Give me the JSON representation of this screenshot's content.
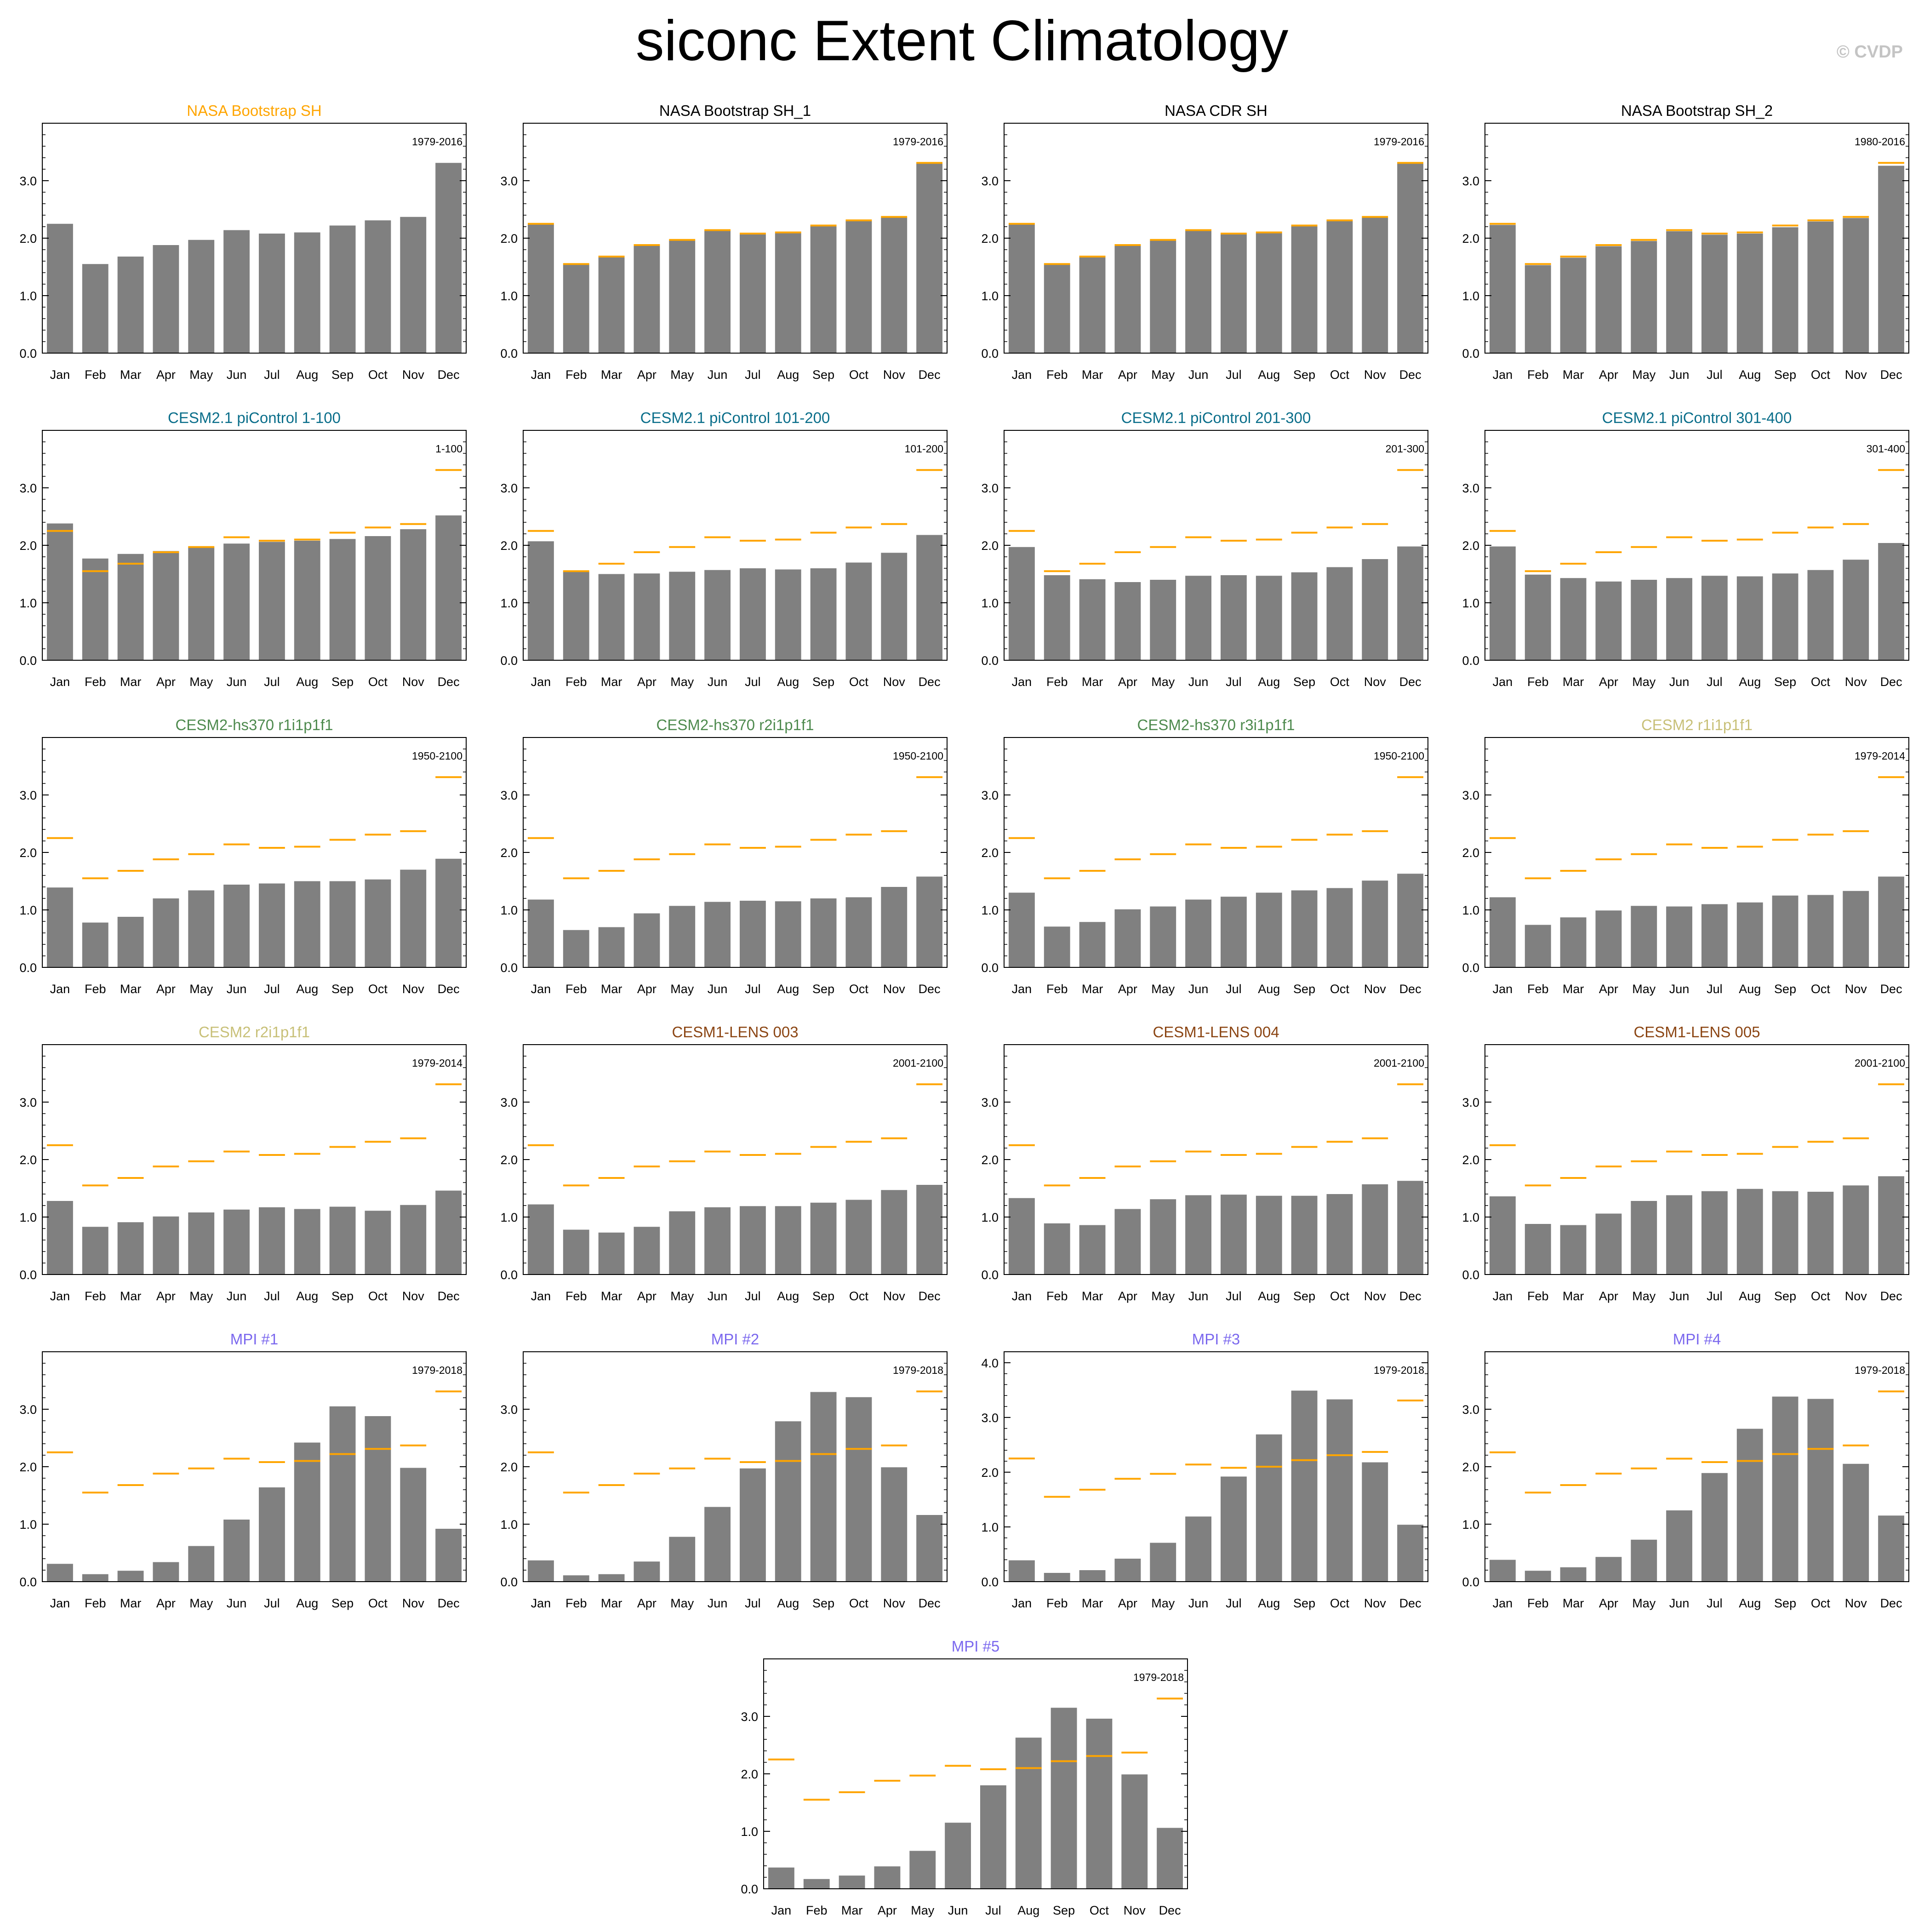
{
  "title": "siconc Extent Climatology",
  "watermark": "© CVDP",
  "months": [
    "Jan",
    "Feb",
    "Mar",
    "Apr",
    "May",
    "Jun",
    "Jul",
    "Aug",
    "Sep",
    "Oct",
    "Nov",
    "Dec"
  ],
  "obs_color": "#ffa500",
  "bar_color": "#808080",
  "reference": [
    2.25,
    1.55,
    1.68,
    1.88,
    1.97,
    2.14,
    2.08,
    2.1,
    2.22,
    2.31,
    2.37,
    3.31
  ],
  "chart_data": [
    {
      "type": "bar",
      "title": "NASA Bootstrap SH",
      "title_color": "#ffa500",
      "period": "1979-2016",
      "ylim": [
        0,
        4
      ],
      "yticks": [
        "0.0",
        "1.0",
        "2.0",
        "3.0"
      ],
      "values": [
        2.25,
        1.55,
        1.68,
        1.88,
        1.97,
        2.14,
        2.08,
        2.1,
        2.22,
        2.31,
        2.37,
        3.31
      ],
      "show_reference": false
    },
    {
      "type": "bar",
      "title": "NASA Bootstrap SH_1",
      "title_color": "#000000",
      "period": "1979-2016",
      "ylim": [
        0,
        4
      ],
      "yticks": [
        "0.0",
        "1.0",
        "2.0",
        "3.0"
      ],
      "values": [
        2.24,
        1.54,
        1.67,
        1.87,
        1.96,
        2.13,
        2.07,
        2.09,
        2.21,
        2.3,
        2.36,
        3.3
      ],
      "show_reference": true
    },
    {
      "type": "bar",
      "title": "NASA CDR SH",
      "title_color": "#000000",
      "period": "1979-2016",
      "ylim": [
        0,
        4
      ],
      "yticks": [
        "0.0",
        "1.0",
        "2.0",
        "3.0"
      ],
      "values": [
        2.24,
        1.54,
        1.67,
        1.87,
        1.96,
        2.13,
        2.07,
        2.09,
        2.21,
        2.3,
        2.36,
        3.3
      ],
      "show_reference": true
    },
    {
      "type": "bar",
      "title": "NASA Bootstrap SH_2",
      "title_color": "#000000",
      "period": "1980-2016",
      "ylim": [
        0,
        4
      ],
      "yticks": [
        "0.0",
        "1.0",
        "2.0",
        "3.0"
      ],
      "values": [
        2.23,
        1.53,
        1.66,
        1.86,
        1.95,
        2.12,
        2.06,
        2.08,
        2.19,
        2.29,
        2.35,
        3.26
      ],
      "show_reference": true
    },
    {
      "type": "bar",
      "title": "CESM2.1 piControl 1-100",
      "title_color": "#0a6e8a",
      "period": "1-100",
      "ylim": [
        0,
        4
      ],
      "yticks": [
        "0.0",
        "1.0",
        "2.0",
        "3.0"
      ],
      "values": [
        2.38,
        1.77,
        1.85,
        1.9,
        1.97,
        2.03,
        2.06,
        2.08,
        2.11,
        2.16,
        2.28,
        2.52
      ],
      "show_reference": true
    },
    {
      "type": "bar",
      "title": "CESM2.1 piControl 101-200",
      "title_color": "#0a6e8a",
      "period": "101-200",
      "ylim": [
        0,
        4
      ],
      "yticks": [
        "0.0",
        "1.0",
        "2.0",
        "3.0"
      ],
      "values": [
        2.07,
        1.54,
        1.5,
        1.51,
        1.54,
        1.57,
        1.6,
        1.58,
        1.6,
        1.7,
        1.87,
        2.18
      ],
      "show_reference": true
    },
    {
      "type": "bar",
      "title": "CESM2.1 piControl 201-300",
      "title_color": "#0a6e8a",
      "period": "201-300",
      "ylim": [
        0,
        4
      ],
      "yticks": [
        "0.0",
        "1.0",
        "2.0",
        "3.0"
      ],
      "values": [
        1.97,
        1.48,
        1.41,
        1.36,
        1.4,
        1.47,
        1.48,
        1.47,
        1.53,
        1.62,
        1.76,
        1.98
      ],
      "show_reference": true
    },
    {
      "type": "bar",
      "title": "CESM2.1 piControl 301-400",
      "title_color": "#0a6e8a",
      "period": "301-400",
      "ylim": [
        0,
        4
      ],
      "yticks": [
        "0.0",
        "1.0",
        "2.0",
        "3.0"
      ],
      "values": [
        1.98,
        1.49,
        1.43,
        1.37,
        1.4,
        1.43,
        1.47,
        1.46,
        1.51,
        1.57,
        1.75,
        2.04
      ],
      "show_reference": true
    },
    {
      "type": "bar",
      "title": "CESM2-hs370 r1i1p1f1",
      "title_color": "#4e8a4e",
      "period": "1950-2100",
      "ylim": [
        0,
        4
      ],
      "yticks": [
        "0.0",
        "1.0",
        "2.0",
        "3.0"
      ],
      "values": [
        1.39,
        0.78,
        0.88,
        1.2,
        1.34,
        1.44,
        1.46,
        1.5,
        1.5,
        1.53,
        1.7,
        1.89
      ],
      "show_reference": true
    },
    {
      "type": "bar",
      "title": "CESM2-hs370 r2i1p1f1",
      "title_color": "#4e8a4e",
      "period": "1950-2100",
      "ylim": [
        0,
        4
      ],
      "yticks": [
        "0.0",
        "1.0",
        "2.0",
        "3.0"
      ],
      "values": [
        1.18,
        0.65,
        0.7,
        0.94,
        1.07,
        1.14,
        1.16,
        1.15,
        1.2,
        1.22,
        1.4,
        1.58
      ],
      "show_reference": true
    },
    {
      "type": "bar",
      "title": "CESM2-hs370 r3i1p1f1",
      "title_color": "#4e8a4e",
      "period": "1950-2100",
      "ylim": [
        0,
        4
      ],
      "yticks": [
        "0.0",
        "1.0",
        "2.0",
        "3.0"
      ],
      "values": [
        1.3,
        0.71,
        0.79,
        1.01,
        1.06,
        1.18,
        1.23,
        1.3,
        1.34,
        1.38,
        1.51,
        1.63
      ],
      "show_reference": true
    },
    {
      "type": "bar",
      "title": "CESM2 r1i1p1f1",
      "title_color": "#c8c078",
      "period": "1979-2014",
      "ylim": [
        0,
        4
      ],
      "yticks": [
        "0.0",
        "1.0",
        "2.0",
        "3.0"
      ],
      "values": [
        1.22,
        0.74,
        0.87,
        0.99,
        1.07,
        1.06,
        1.1,
        1.13,
        1.25,
        1.26,
        1.33,
        1.58
      ],
      "show_reference": true
    },
    {
      "type": "bar",
      "title": "CESM2 r2i1p1f1",
      "title_color": "#c8c078",
      "period": "1979-2014",
      "ylim": [
        0,
        4
      ],
      "yticks": [
        "0.0",
        "1.0",
        "2.0",
        "3.0"
      ],
      "values": [
        1.28,
        0.83,
        0.91,
        1.01,
        1.08,
        1.13,
        1.17,
        1.14,
        1.18,
        1.11,
        1.21,
        1.46
      ],
      "show_reference": true
    },
    {
      "type": "bar",
      "title": "CESM1-LENS 003",
      "title_color": "#8b4513",
      "period": "2001-2100",
      "ylim": [
        0,
        4
      ],
      "yticks": [
        "0.0",
        "1.0",
        "2.0",
        "3.0"
      ],
      "values": [
        1.22,
        0.78,
        0.73,
        0.83,
        1.1,
        1.17,
        1.19,
        1.19,
        1.25,
        1.3,
        1.47,
        1.56
      ],
      "show_reference": true
    },
    {
      "type": "bar",
      "title": "CESM1-LENS 004",
      "title_color": "#8b4513",
      "period": "2001-2100",
      "ylim": [
        0,
        4
      ],
      "yticks": [
        "0.0",
        "1.0",
        "2.0",
        "3.0"
      ],
      "values": [
        1.33,
        0.89,
        0.86,
        1.14,
        1.31,
        1.38,
        1.39,
        1.37,
        1.37,
        1.4,
        1.57,
        1.63
      ],
      "show_reference": true
    },
    {
      "type": "bar",
      "title": "CESM1-LENS 005",
      "title_color": "#8b4513",
      "period": "2001-2100",
      "ylim": [
        0,
        4
      ],
      "yticks": [
        "0.0",
        "1.0",
        "2.0",
        "3.0"
      ],
      "values": [
        1.36,
        0.88,
        0.86,
        1.06,
        1.28,
        1.38,
        1.45,
        1.49,
        1.45,
        1.44,
        1.55,
        1.71
      ],
      "show_reference": true
    },
    {
      "type": "bar",
      "title": "MPI #1",
      "title_color": "#7b68ee",
      "period": "1979-2018",
      "ylim": [
        0,
        4
      ],
      "yticks": [
        "0.0",
        "1.0",
        "2.0",
        "3.0"
      ],
      "values": [
        0.31,
        0.13,
        0.19,
        0.34,
        0.62,
        1.08,
        1.64,
        2.42,
        3.05,
        2.88,
        1.98,
        0.92
      ],
      "show_reference": true
    },
    {
      "type": "bar",
      "title": "MPI #2",
      "title_color": "#7b68ee",
      "period": "1979-2018",
      "ylim": [
        0,
        4
      ],
      "yticks": [
        "0.0",
        "1.0",
        "2.0",
        "3.0"
      ],
      "values": [
        0.37,
        0.11,
        0.13,
        0.35,
        0.78,
        1.3,
        1.97,
        2.79,
        3.3,
        3.21,
        1.99,
        1.16
      ],
      "show_reference": true
    },
    {
      "type": "bar",
      "title": "MPI #3",
      "title_color": "#7b68ee",
      "period": "1979-2018",
      "ylim": [
        0,
        4.2
      ],
      "yticks": [
        "0.0",
        "1.0",
        "2.0",
        "3.0",
        "4.0"
      ],
      "values": [
        0.39,
        0.16,
        0.21,
        0.42,
        0.71,
        1.19,
        1.92,
        2.69,
        3.49,
        3.33,
        2.18,
        1.04
      ],
      "show_reference": true
    },
    {
      "type": "bar",
      "title": "MPI #4",
      "title_color": "#7b68ee",
      "period": "1979-2018",
      "ylim": [
        0,
        4
      ],
      "yticks": [
        "0.0",
        "1.0",
        "2.0",
        "3.0"
      ],
      "values": [
        0.38,
        0.19,
        0.25,
        0.43,
        0.73,
        1.24,
        1.89,
        2.66,
        3.22,
        3.18,
        2.05,
        1.15
      ],
      "show_reference": true
    },
    {
      "type": "bar",
      "title": "MPI #5",
      "title_color": "#7b68ee",
      "period": "1979-2018",
      "ylim": [
        0,
        4
      ],
      "yticks": [
        "0.0",
        "1.0",
        "2.0",
        "3.0"
      ],
      "values": [
        0.37,
        0.17,
        0.23,
        0.39,
        0.66,
        1.15,
        1.8,
        2.63,
        3.15,
        2.96,
        1.99,
        1.06
      ],
      "show_reference": true
    }
  ]
}
